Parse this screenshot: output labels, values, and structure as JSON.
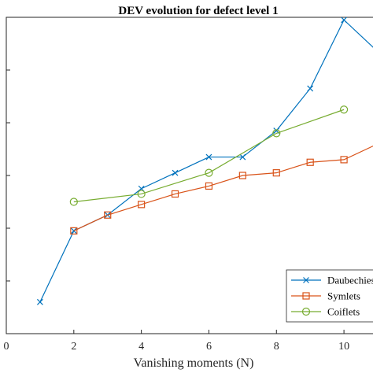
{
  "chart_data": {
    "type": "line",
    "title": "DEV evolution for defect level 1",
    "xlabel": "Vanishing moments (N)",
    "ylabel": "",
    "xlim": [
      0,
      11
    ],
    "ylim": [
      0,
      6
    ],
    "xticks": [
      "0",
      "2",
      "4",
      "6",
      "8",
      "10"
    ],
    "grid": false,
    "legend_position": "bottom-right",
    "series": [
      {
        "name": "Daubechies",
        "color": "#0072BD",
        "marker": "x",
        "x": [
          1,
          2,
          3,
          4,
          5,
          6,
          7,
          8,
          9,
          10,
          11
        ],
        "y": [
          0.6,
          1.95,
          2.25,
          2.75,
          3.05,
          3.35,
          3.35,
          3.85,
          4.65,
          5.95,
          5.35
        ]
      },
      {
        "name": "Symlets",
        "color": "#D95319",
        "marker": "square",
        "x": [
          2,
          3,
          4,
          5,
          6,
          7,
          8,
          9,
          10,
          11
        ],
        "y": [
          1.95,
          2.25,
          2.45,
          2.65,
          2.8,
          3.0,
          3.05,
          3.25,
          3.3,
          3.6
        ]
      },
      {
        "name": "Coiflets",
        "color": "#77AC30",
        "marker": "circle",
        "x": [
          2,
          4,
          6,
          8,
          10
        ],
        "y": [
          2.5,
          2.65,
          3.05,
          3.8,
          4.25
        ]
      }
    ]
  }
}
